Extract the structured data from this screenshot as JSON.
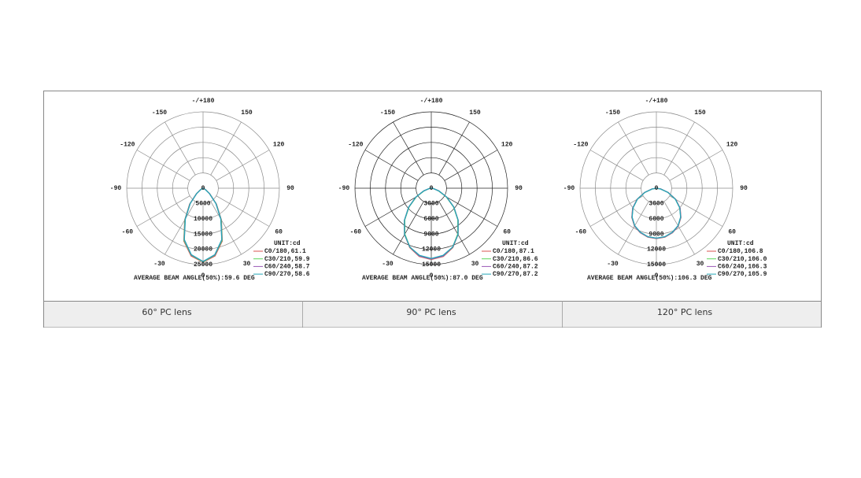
{
  "chart_data": [
    {
      "type": "polar",
      "caption": "60° PC lens",
      "subtitle": "AVERAGE BEAM ANGLE(50%):59.6 DEG",
      "unit": "UNIT:cd",
      "grid_color": "#8a8a8a",
      "angles": [
        0,
        10,
        20,
        30,
        40,
        50,
        60,
        70,
        80,
        90
      ],
      "series": [
        {
          "name": "C0/180,61.1",
          "color": "#d9534f",
          "values": [
            24200,
            22500,
            18400,
            12000,
            6800,
            2900,
            900,
            200,
            0,
            0
          ]
        },
        {
          "name": "C30/210,59.9",
          "color": "#5cd65c",
          "values": [
            24100,
            22300,
            18200,
            11900,
            6700,
            2800,
            900,
            200,
            0,
            0
          ]
        },
        {
          "name": "C60/240,58.7",
          "color": "#9b59b6",
          "values": [
            24000,
            22200,
            18000,
            11700,
            6600,
            2800,
            850,
            200,
            0,
            0
          ]
        },
        {
          "name": "C90/270,58.6",
          "color": "#26a6b8",
          "values": [
            24000,
            22100,
            17900,
            11600,
            6500,
            2700,
            800,
            150,
            0,
            0
          ]
        }
      ],
      "rlim": [
        0,
        25000
      ],
      "rticks": [
        0,
        5000,
        10000,
        15000,
        20000,
        25000
      ],
      "thetaticks": [
        0,
        30,
        60,
        90,
        120,
        150,
        {
          "value": 180,
          "label": "-/+180"
        },
        -150,
        -120,
        -90,
        -60,
        -30
      ]
    },
    {
      "type": "polar",
      "caption": "90° PC lens",
      "subtitle": "AVERAGE BEAM ANGLE(50%):87.0 DEG",
      "unit": "UNIT:cd",
      "grid_color": "#222222",
      "angles": [
        0,
        10,
        20,
        30,
        40,
        50,
        60,
        70,
        80,
        90
      ],
      "series": [
        {
          "name": "C0/180,87.1",
          "color": "#d9534f",
          "values": [
            14000,
            13600,
            12400,
            10500,
            8200,
            5800,
            3500,
            1600,
            400,
            0
          ]
        },
        {
          "name": "C30/210,86.6",
          "color": "#5cd65c",
          "values": [
            13900,
            13500,
            12300,
            10400,
            8100,
            5700,
            3400,
            1500,
            400,
            0
          ]
        },
        {
          "name": "C60/240,87.2",
          "color": "#9b59b6",
          "values": [
            13900,
            13500,
            12300,
            10500,
            8200,
            5800,
            3500,
            1600,
            400,
            0
          ]
        },
        {
          "name": "C90/270,87.2",
          "color": "#26a6b8",
          "values": [
            13800,
            13400,
            12300,
            10500,
            8200,
            5800,
            3500,
            1600,
            400,
            0
          ]
        }
      ],
      "rlim": [
        0,
        15000
      ],
      "rticks": [
        0,
        3000,
        6000,
        9000,
        12000,
        15000
      ],
      "thetaticks": [
        0,
        30,
        60,
        90,
        120,
        150,
        {
          "value": 180,
          "label": "-/+180"
        },
        -150,
        -120,
        -90,
        -60,
        -30
      ]
    },
    {
      "type": "polar",
      "caption": "120° PC lens",
      "subtitle": "AVERAGE BEAM ANGLE(50%):106.3 DEG",
      "unit": "UNIT:cd",
      "grid_color": "#8a8a8a",
      "angles": [
        0,
        10,
        20,
        30,
        40,
        50,
        60,
        70,
        80,
        90
      ],
      "series": [
        {
          "name": "C0/180,106.8",
          "color": "#d9534f",
          "values": [
            9900,
            9750,
            9300,
            8600,
            7500,
            6100,
            4400,
            2500,
            900,
            0
          ]
        },
        {
          "name": "C30/210,106.0",
          "color": "#5cd65c",
          "values": [
            9850,
            9700,
            9250,
            8550,
            7450,
            6000,
            4300,
            2400,
            850,
            0
          ]
        },
        {
          "name": "C60/240,106.3",
          "color": "#9b59b6",
          "values": [
            9850,
            9700,
            9250,
            8550,
            7450,
            6050,
            4350,
            2450,
            900,
            0
          ]
        },
        {
          "name": "C90/270,105.9",
          "color": "#26a6b8",
          "values": [
            9800,
            9650,
            9200,
            8500,
            7400,
            6000,
            4300,
            2400,
            850,
            0
          ]
        }
      ],
      "rlim": [
        0,
        15000
      ],
      "rticks": [
        0,
        3000,
        6000,
        9000,
        12000,
        15000
      ],
      "thetaticks": [
        0,
        30,
        60,
        90,
        120,
        150,
        {
          "value": 180,
          "label": "-/+180"
        },
        -150,
        -120,
        -90,
        -60,
        -30
      ]
    }
  ]
}
